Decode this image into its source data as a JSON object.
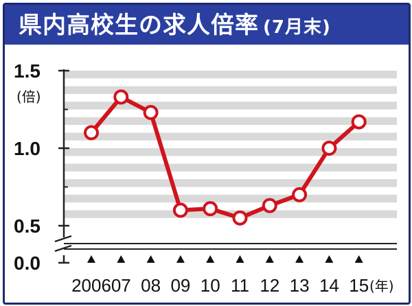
{
  "header": {
    "title": "県内高校生の求人倍率",
    "subtitle": "(7月末)"
  },
  "colors": {
    "title_bg": "#2b3fa0",
    "line": "#d0141e",
    "stripe": "#d9d9d9",
    "marker_fill": "#ffffff"
  },
  "chart_data": {
    "type": "line",
    "title": "県内高校生の求人倍率",
    "subtitle": "(7月末)",
    "xlabel": "(年)",
    "ylabel": "(倍)",
    "x_tick_labels": [
      "2006",
      "07",
      "08",
      "09",
      "10",
      "11",
      "12",
      "13",
      "14",
      "15"
    ],
    "y_tick_labels": [
      "1.5",
      "1.0",
      "0.5",
      "0.0"
    ],
    "y_ticks": [
      0.5,
      1.0,
      1.5
    ],
    "ylim": [
      0.5,
      1.5
    ],
    "axis_break": true,
    "grid": "horizontal stripes",
    "series": [
      {
        "values": [
          1.1,
          1.33,
          1.23,
          0.6,
          0.61,
          0.55,
          0.63,
          0.7,
          1.0,
          1.17
        ]
      }
    ]
  }
}
